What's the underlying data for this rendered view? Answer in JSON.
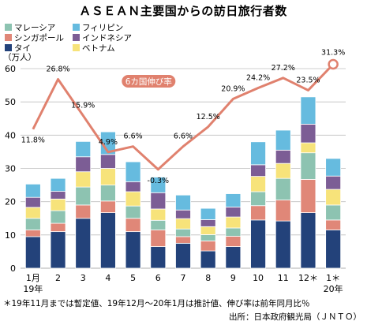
{
  "colors": {
    "thailand": "#23427a",
    "singapore": "#e08778",
    "malaysia": "#8dc3b1",
    "vietnam": "#f7e37a",
    "indonesia": "#7c5d95",
    "philippines": "#66bbdf",
    "line": "#e0816e",
    "grid": "#bfbfbf"
  },
  "chart_data": {
    "type": "bar",
    "title": "ＡＳＥＡＮ主要国からの訪日旅行者数",
    "ylabel": "（万人）",
    "ylim": [
      0,
      60
    ],
    "yticks": [
      "0",
      "10",
      "20",
      "30",
      "40",
      "50",
      "60"
    ],
    "grid": true,
    "legend_position": "top-left",
    "stacked": true,
    "categories": [
      "1月",
      "2",
      "3",
      "4",
      "5",
      "6",
      "7",
      "8",
      "9",
      "10",
      "11",
      "12＊",
      "1＊"
    ],
    "category_sublabels": [
      "19年",
      "",
      "",
      "",
      "",
      "",
      "",
      "",
      "",
      "",
      "",
      "",
      "20年"
    ],
    "series": [
      {
        "name": "タイ",
        "values": [
          9.5,
          11,
          15,
          16.7,
          11,
          6.5,
          7.5,
          5.2,
          6.5,
          14.5,
          14.2,
          16.7,
          11.5
        ],
        "color_key": "thailand"
      },
      {
        "name": "シンガポール",
        "values": [
          2,
          2.5,
          4,
          3.5,
          4,
          5,
          2,
          3,
          3.1,
          4.3,
          6.3,
          10,
          3
        ],
        "color_key": "singapore"
      },
      {
        "name": "マレーシア",
        "values": [
          3.5,
          3.8,
          5.4,
          4.8,
          3.7,
          2.9,
          2.3,
          1.9,
          2.5,
          4.2,
          6.5,
          8,
          4.5
        ],
        "color_key": "malaysia"
      },
      {
        "name": "ベトナム",
        "values": [
          3.3,
          3.5,
          4.6,
          5,
          4.3,
          3.4,
          3.1,
          2.4,
          3.3,
          4.6,
          4.5,
          3,
          4.7
        ],
        "color_key": "vietnam"
      },
      {
        "name": "インドネシア",
        "values": [
          3,
          2.3,
          4.5,
          4.2,
          3,
          4.9,
          2.6,
          2.1,
          3,
          3.5,
          4,
          5.6,
          4
        ],
        "color_key": "indonesia"
      },
      {
        "name": "フィリピン",
        "values": [
          4,
          3.9,
          4.6,
          6.8,
          6,
          4.7,
          4.5,
          3.4,
          4,
          6.9,
          6,
          8.2,
          5.3
        ],
        "color_key": "philippines"
      }
    ],
    "growth_line": {
      "values": [
        11.8,
        26.8,
        15.9,
        4.9,
        6.6,
        -0.3,
        6.6,
        12.5,
        20.9,
        24.2,
        27.2,
        23.5,
        31.3
      ],
      "labels": [
        "11.8%",
        "26.8%",
        "15.9%",
        "4.9%",
        "6.6%",
        "-0.3%",
        "6.6%",
        "12.5%",
        "20.9%",
        "24.2%",
        "27.2%",
        "23.5%",
        "31.3%"
      ],
      "callout": "6カ国伸び率",
      "color_key": "line"
    }
  },
  "footnote": "＊19年11月までは暫定値、19年12月～20年1月は推計値、伸び率は前年同月比％",
  "source": "出所：日本政府観光局（ＪＮＴＯ）"
}
